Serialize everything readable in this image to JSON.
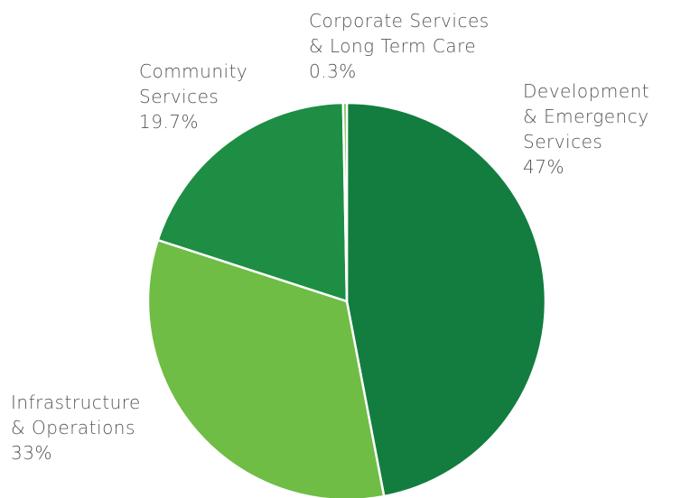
{
  "chart_data": {
    "type": "pie",
    "title": "",
    "slices": [
      {
        "name": "Development & Emergency Services",
        "label_lines": [
          "Development",
          "& Emergency",
          "Services"
        ],
        "percent_label": "47%",
        "value": 47.0,
        "color": "#127d3e"
      },
      {
        "name": "Infrastructure & Operations",
        "label_lines": [
          "Infrastructure",
          "& Operations"
        ],
        "percent_label": "33%",
        "value": 33.0,
        "color": "#6fbd45"
      },
      {
        "name": "Community Services",
        "label_lines": [
          "Community",
          "Services"
        ],
        "percent_label": "19.7%",
        "value": 19.7,
        "color": "#1d8e43"
      },
      {
        "name": "Corporate Services & Long Term Care",
        "label_lines": [
          "Corporate Services",
          "& Long Term Care"
        ],
        "percent_label": "0.3%",
        "value": 0.3,
        "color": "#6fbd45"
      }
    ],
    "start_angle": "12 o'clock",
    "direction": "clockwise",
    "legend": "none",
    "labels_placement": "outside"
  }
}
